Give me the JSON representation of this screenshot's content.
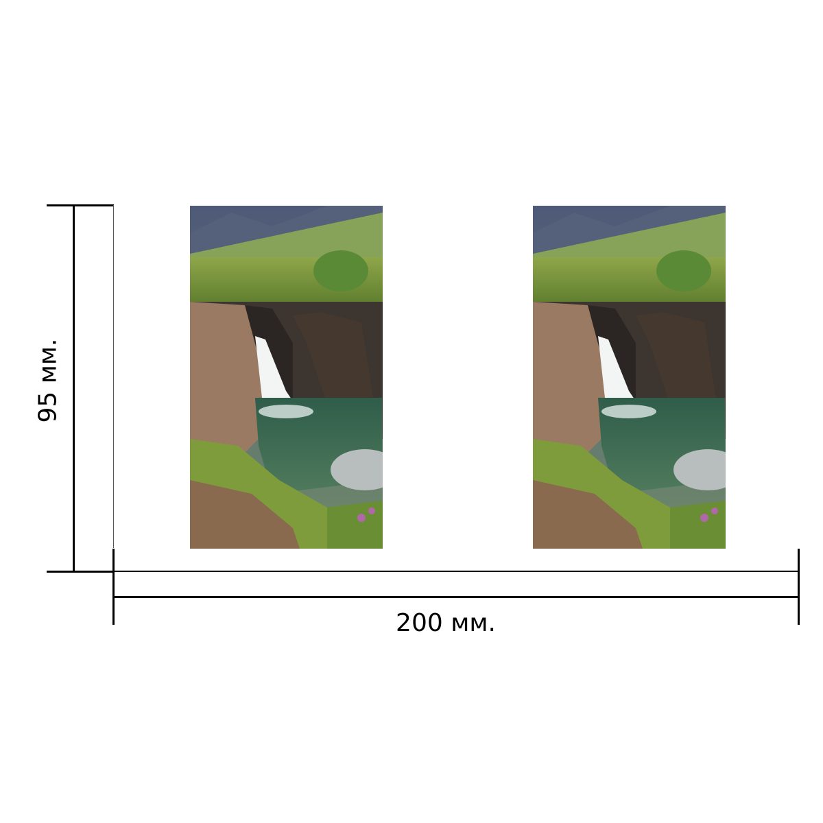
{
  "dimensions": {
    "height_label": "95 мм.",
    "width_label": "200 мм."
  },
  "photos": [
    {
      "subject": "waterfall-landscape"
    },
    {
      "subject": "waterfall-landscape"
    }
  ]
}
